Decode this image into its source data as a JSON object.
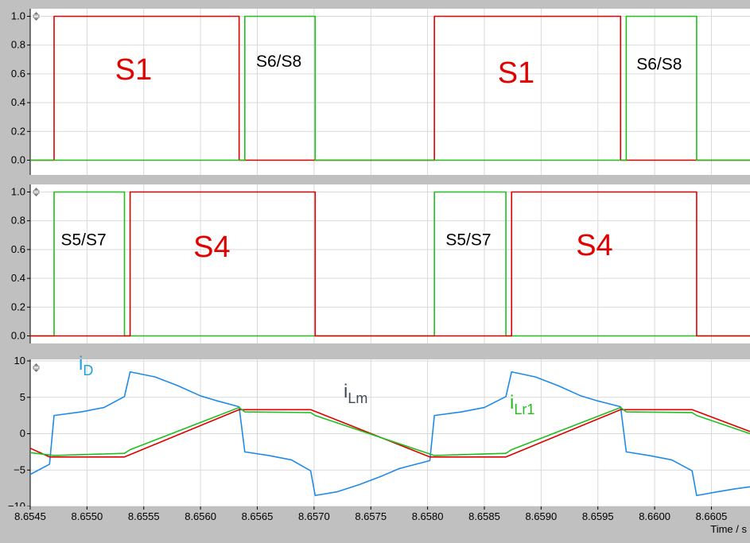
{
  "chart_data": [
    {
      "type": "line",
      "panel": "top",
      "ylim": [
        -0.05,
        1.05
      ],
      "yticks": [
        "0.0",
        "0.2",
        "0.4",
        "0.6",
        "0.8",
        "1.0"
      ],
      "grid": true,
      "series": [
        {
          "color": "#e00000",
          "points": [
            [
              8.6545,
              0
            ],
            [
              8.65471,
              0
            ],
            [
              8.65471,
              1
            ],
            [
              8.65634,
              1
            ],
            [
              8.65634,
              0
            ],
            [
              8.65806,
              0
            ],
            [
              8.65806,
              1
            ],
            [
              8.6597,
              1
            ],
            [
              8.6597,
              0
            ],
            [
              8.66084,
              0
            ]
          ]
        },
        {
          "color": "#1fbf1f",
          "points": [
            [
              8.6545,
              0
            ],
            [
              8.65639,
              0
            ],
            [
              8.65639,
              1
            ],
            [
              8.65701,
              1
            ],
            [
              8.65701,
              0
            ],
            [
              8.65975,
              0
            ],
            [
              8.65975,
              1
            ],
            [
              8.66037,
              1
            ],
            [
              8.66037,
              0
            ],
            [
              8.66084,
              0
            ]
          ]
        }
      ],
      "annotations": [
        {
          "text": "S1",
          "x": 8.65541,
          "y": 0.56,
          "color": "#e00000",
          "size": "large"
        },
        {
          "text": "S6/S8",
          "x": 8.65669,
          "y": 0.65,
          "color": "#000000",
          "size": "small"
        },
        {
          "text": "S1",
          "x": 8.65878,
          "y": 0.54,
          "color": "#e00000",
          "size": "large"
        },
        {
          "text": "S6/S8",
          "x": 8.66004,
          "y": 0.63,
          "color": "#000000",
          "size": "small"
        }
      ]
    },
    {
      "type": "line",
      "panel": "middle",
      "ylim": [
        -0.05,
        1.05
      ],
      "yticks": [
        "0.0",
        "0.2",
        "0.4",
        "0.6",
        "0.8",
        "1.0"
      ],
      "grid": true,
      "series": [
        {
          "color": "#1fbf1f",
          "points": [
            [
              8.6545,
              0
            ],
            [
              8.65471,
              0
            ],
            [
              8.65471,
              1
            ],
            [
              8.65533,
              1
            ],
            [
              8.65533,
              0
            ],
            [
              8.65806,
              0
            ],
            [
              8.65806,
              1
            ],
            [
              8.65869,
              1
            ],
            [
              8.65869,
              0
            ],
            [
              8.66084,
              0
            ]
          ]
        },
        {
          "color": "#e00000",
          "points": [
            [
              8.6545,
              0
            ],
            [
              8.65538,
              0
            ],
            [
              8.65538,
              1
            ],
            [
              8.65701,
              1
            ],
            [
              8.65701,
              0
            ],
            [
              8.65874,
              0
            ],
            [
              8.65874,
              1
            ],
            [
              8.66037,
              1
            ],
            [
              8.66037,
              0
            ],
            [
              8.66084,
              0
            ]
          ]
        }
      ],
      "annotations": [
        {
          "text": "S5/S7",
          "x": 8.65497,
          "y": 0.63,
          "color": "#000000",
          "size": "small"
        },
        {
          "text": "S4",
          "x": 8.6561,
          "y": 0.55,
          "color": "#e00000",
          "size": "large"
        },
        {
          "text": "S5/S7",
          "x": 8.65836,
          "y": 0.63,
          "color": "#000000",
          "size": "small"
        },
        {
          "text": "S4",
          "x": 8.65947,
          "y": 0.56,
          "color": "#e00000",
          "size": "large"
        }
      ]
    },
    {
      "type": "line",
      "panel": "bottom",
      "ylim": [
        -10,
        10
      ],
      "yticks": [
        "−10",
        "−5",
        "0",
        "5",
        "10"
      ],
      "xlim": [
        8.6545,
        8.66084
      ],
      "xticks": [
        "8.6545",
        "8.6550",
        "8.6555",
        "8.6560",
        "8.6565",
        "8.6570",
        "8.6575",
        "8.6580",
        "8.6585",
        "8.6590",
        "8.6595",
        "8.6600",
        "8.6605"
      ],
      "xlabel": "Time / s",
      "grid": true,
      "series": [
        {
          "color": "#1e8be8",
          "points": [
            [
              8.6545,
              -5.6
            ],
            [
              8.65467,
              -4.2
            ],
            [
              8.65471,
              2.5
            ],
            [
              8.65495,
              3.0
            ],
            [
              8.65515,
              3.6
            ],
            [
              8.65533,
              5.1
            ],
            [
              8.65538,
              8.5
            ],
            [
              8.6556,
              7.8
            ],
            [
              8.6558,
              6.6
            ],
            [
              8.656,
              5.2
            ],
            [
              8.65615,
              4.5
            ],
            [
              8.65634,
              3.7
            ],
            [
              8.65639,
              -2.5
            ],
            [
              8.6566,
              -3.0
            ],
            [
              8.6568,
              -3.6
            ],
            [
              8.65697,
              -5.1
            ],
            [
              8.65701,
              -8.5
            ],
            [
              8.6572,
              -8.0
            ],
            [
              8.6574,
              -7.0
            ],
            [
              8.6576,
              -5.8
            ],
            [
              8.65775,
              -4.8
            ],
            [
              8.65802,
              -3.7
            ],
            [
              8.65806,
              2.5
            ],
            [
              8.6583,
              3.0
            ],
            [
              8.6585,
              3.6
            ],
            [
              8.65869,
              5.1
            ],
            [
              8.65874,
              8.5
            ],
            [
              8.65895,
              7.8
            ],
            [
              8.65915,
              6.6
            ],
            [
              8.65935,
              5.2
            ],
            [
              8.6595,
              4.5
            ],
            [
              8.6597,
              3.7
            ],
            [
              8.65975,
              -2.5
            ],
            [
              8.65995,
              -3.0
            ],
            [
              8.66015,
              -3.6
            ],
            [
              8.66033,
              -5.1
            ],
            [
              8.66037,
              -8.5
            ],
            [
              8.66055,
              -8.0
            ],
            [
              8.6607,
              -7.6
            ],
            [
              8.66084,
              -7.3
            ]
          ]
        },
        {
          "color": "#e00000",
          "points": [
            [
              8.6545,
              -2.0
            ],
            [
              8.65467,
              -3.2
            ],
            [
              8.65533,
              -3.2
            ],
            [
              8.65634,
              3.3
            ],
            [
              8.65697,
              3.3
            ],
            [
              8.65802,
              -3.2
            ],
            [
              8.65869,
              -3.2
            ],
            [
              8.6597,
              3.3
            ],
            [
              8.66033,
              3.3
            ],
            [
              8.66084,
              0.3
            ]
          ]
        },
        {
          "color": "#1fbf1f",
          "points": [
            [
              8.6545,
              -2.6
            ],
            [
              8.65471,
              -3.0
            ],
            [
              8.65533,
              -2.7
            ],
            [
              8.65538,
              -2.2
            ],
            [
              8.65634,
              3.6
            ],
            [
              8.65639,
              3.0
            ],
            [
              8.65697,
              2.9
            ],
            [
              8.65701,
              2.5
            ],
            [
              8.65806,
              -3.0
            ],
            [
              8.65869,
              -2.7
            ],
            [
              8.65874,
              -2.2
            ],
            [
              8.6597,
              3.6
            ],
            [
              8.65975,
              3.0
            ],
            [
              8.66033,
              2.9
            ],
            [
              8.66037,
              2.5
            ],
            [
              8.66084,
              0.0
            ]
          ]
        }
      ],
      "labels": {
        "iD": {
          "main": "i",
          "sub": "D",
          "color": "#1ea0e0"
        },
        "iLm": {
          "main": "i",
          "sub": "Lm",
          "color": "#404858"
        },
        "iLr1": {
          "main": "i",
          "sub": "Lr1",
          "color": "#1fbf1f"
        }
      }
    }
  ]
}
